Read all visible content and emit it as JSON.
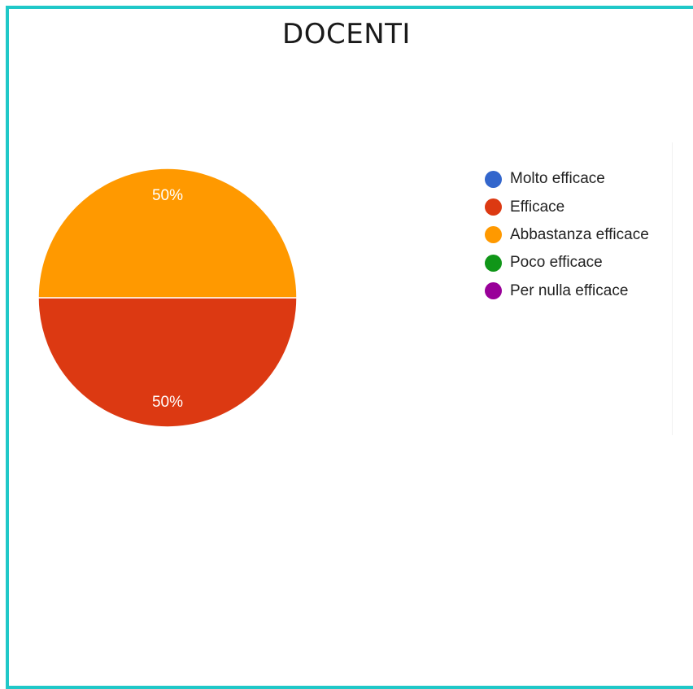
{
  "title": "DOCENTI",
  "chart_data": {
    "type": "pie",
    "title": "DOCENTI",
    "categories": [
      "Molto efficace",
      "Efficace",
      "Abbastanza efficace",
      "Poco efficace",
      "Per nulla efficace"
    ],
    "values": [
      0,
      50,
      50,
      0,
      0
    ],
    "data_labels": [
      "",
      "50%",
      "50%",
      "",
      ""
    ],
    "colors": [
      "#3366cc",
      "#dc3912",
      "#ff9900",
      "#109618",
      "#990099"
    ],
    "legend_placement": "right"
  }
}
